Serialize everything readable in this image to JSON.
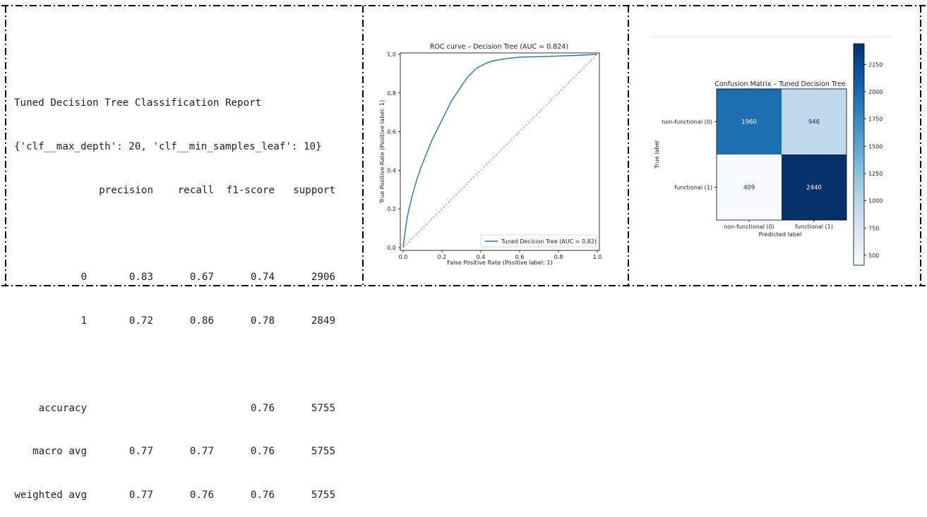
{
  "report": {
    "title": "Tuned Decision Tree Classification Report",
    "params": "{'clf__max_depth': 20, 'clf__min_samples_leaf': 10}",
    "header": [
      "",
      "precision",
      "recall",
      "f1-score",
      "support"
    ],
    "rows": [
      [
        "0",
        "0.83",
        "0.67",
        "0.74",
        "2906"
      ],
      [
        "1",
        "0.72",
        "0.86",
        "0.78",
        "2849"
      ],
      [
        "accuracy",
        "",
        "",
        "0.76",
        "5755"
      ],
      [
        "macro avg",
        "0.77",
        "0.77",
        "0.76",
        "5755"
      ],
      [
        "weighted avg",
        "0.77",
        "0.76",
        "0.76",
        "5755"
      ]
    ]
  },
  "chart_data": [
    {
      "type": "line",
      "title": "ROC curve – Decision Tree (AUC = 0.824)",
      "xlabel": "False Positive Rate (Positive label: 1)",
      "ylabel": "True Positive Rate (Positive label: 1)",
      "xlim": [
        0,
        1
      ],
      "ylim": [
        0,
        1
      ],
      "xticks": [
        "0.0",
        "0.2",
        "0.4",
        "0.6",
        "0.8",
        "1.0"
      ],
      "yticks": [
        "0.0",
        "0.2",
        "0.4",
        "0.6",
        "0.8",
        "1.0"
      ],
      "legend_position": "lower-right",
      "series": [
        {
          "name": "Tuned Decision Tree (AUC = 0.82)",
          "color": "#1f77b4",
          "x": [
            0,
            0.005,
            0.01,
            0.02,
            0.03,
            0.05,
            0.07,
            0.09,
            0.11,
            0.13,
            0.15,
            0.17,
            0.19,
            0.21,
            0.23,
            0.25,
            0.27,
            0.29,
            0.31,
            0.33,
            0.35,
            0.37,
            0.39,
            0.41,
            0.43,
            0.46,
            0.5,
            0.55,
            0.6,
            0.7,
            0.8,
            0.9,
            1.0
          ],
          "y": [
            0,
            0.04,
            0.08,
            0.15,
            0.2,
            0.28,
            0.35,
            0.41,
            0.46,
            0.51,
            0.56,
            0.6,
            0.64,
            0.68,
            0.72,
            0.76,
            0.79,
            0.82,
            0.85,
            0.88,
            0.9,
            0.92,
            0.935,
            0.945,
            0.955,
            0.965,
            0.973,
            0.98,
            0.985,
            0.988,
            0.991,
            0.995,
            1.0
          ]
        },
        {
          "name": "",
          "color": "#808080",
          "dashed": true,
          "x": [
            0,
            1
          ],
          "y": [
            0,
            1
          ]
        }
      ]
    },
    {
      "type": "heatmap",
      "title": "Confusion Matrix – Tuned Decision Tree",
      "xlabel": "Predicted label",
      "ylabel": "True label",
      "x_categories": [
        "non-functional (0)",
        "functional (1)"
      ],
      "y_categories": [
        "non-functional (0)",
        "functional (1)"
      ],
      "values": [
        [
          1960,
          946
        ],
        [
          409,
          2440
        ]
      ],
      "colorbar": {
        "min": 409,
        "max": 2440,
        "ticks": [
          500,
          750,
          1000,
          1250,
          1500,
          1750,
          2000,
          2250
        ],
        "colormap": "Blues"
      }
    }
  ]
}
